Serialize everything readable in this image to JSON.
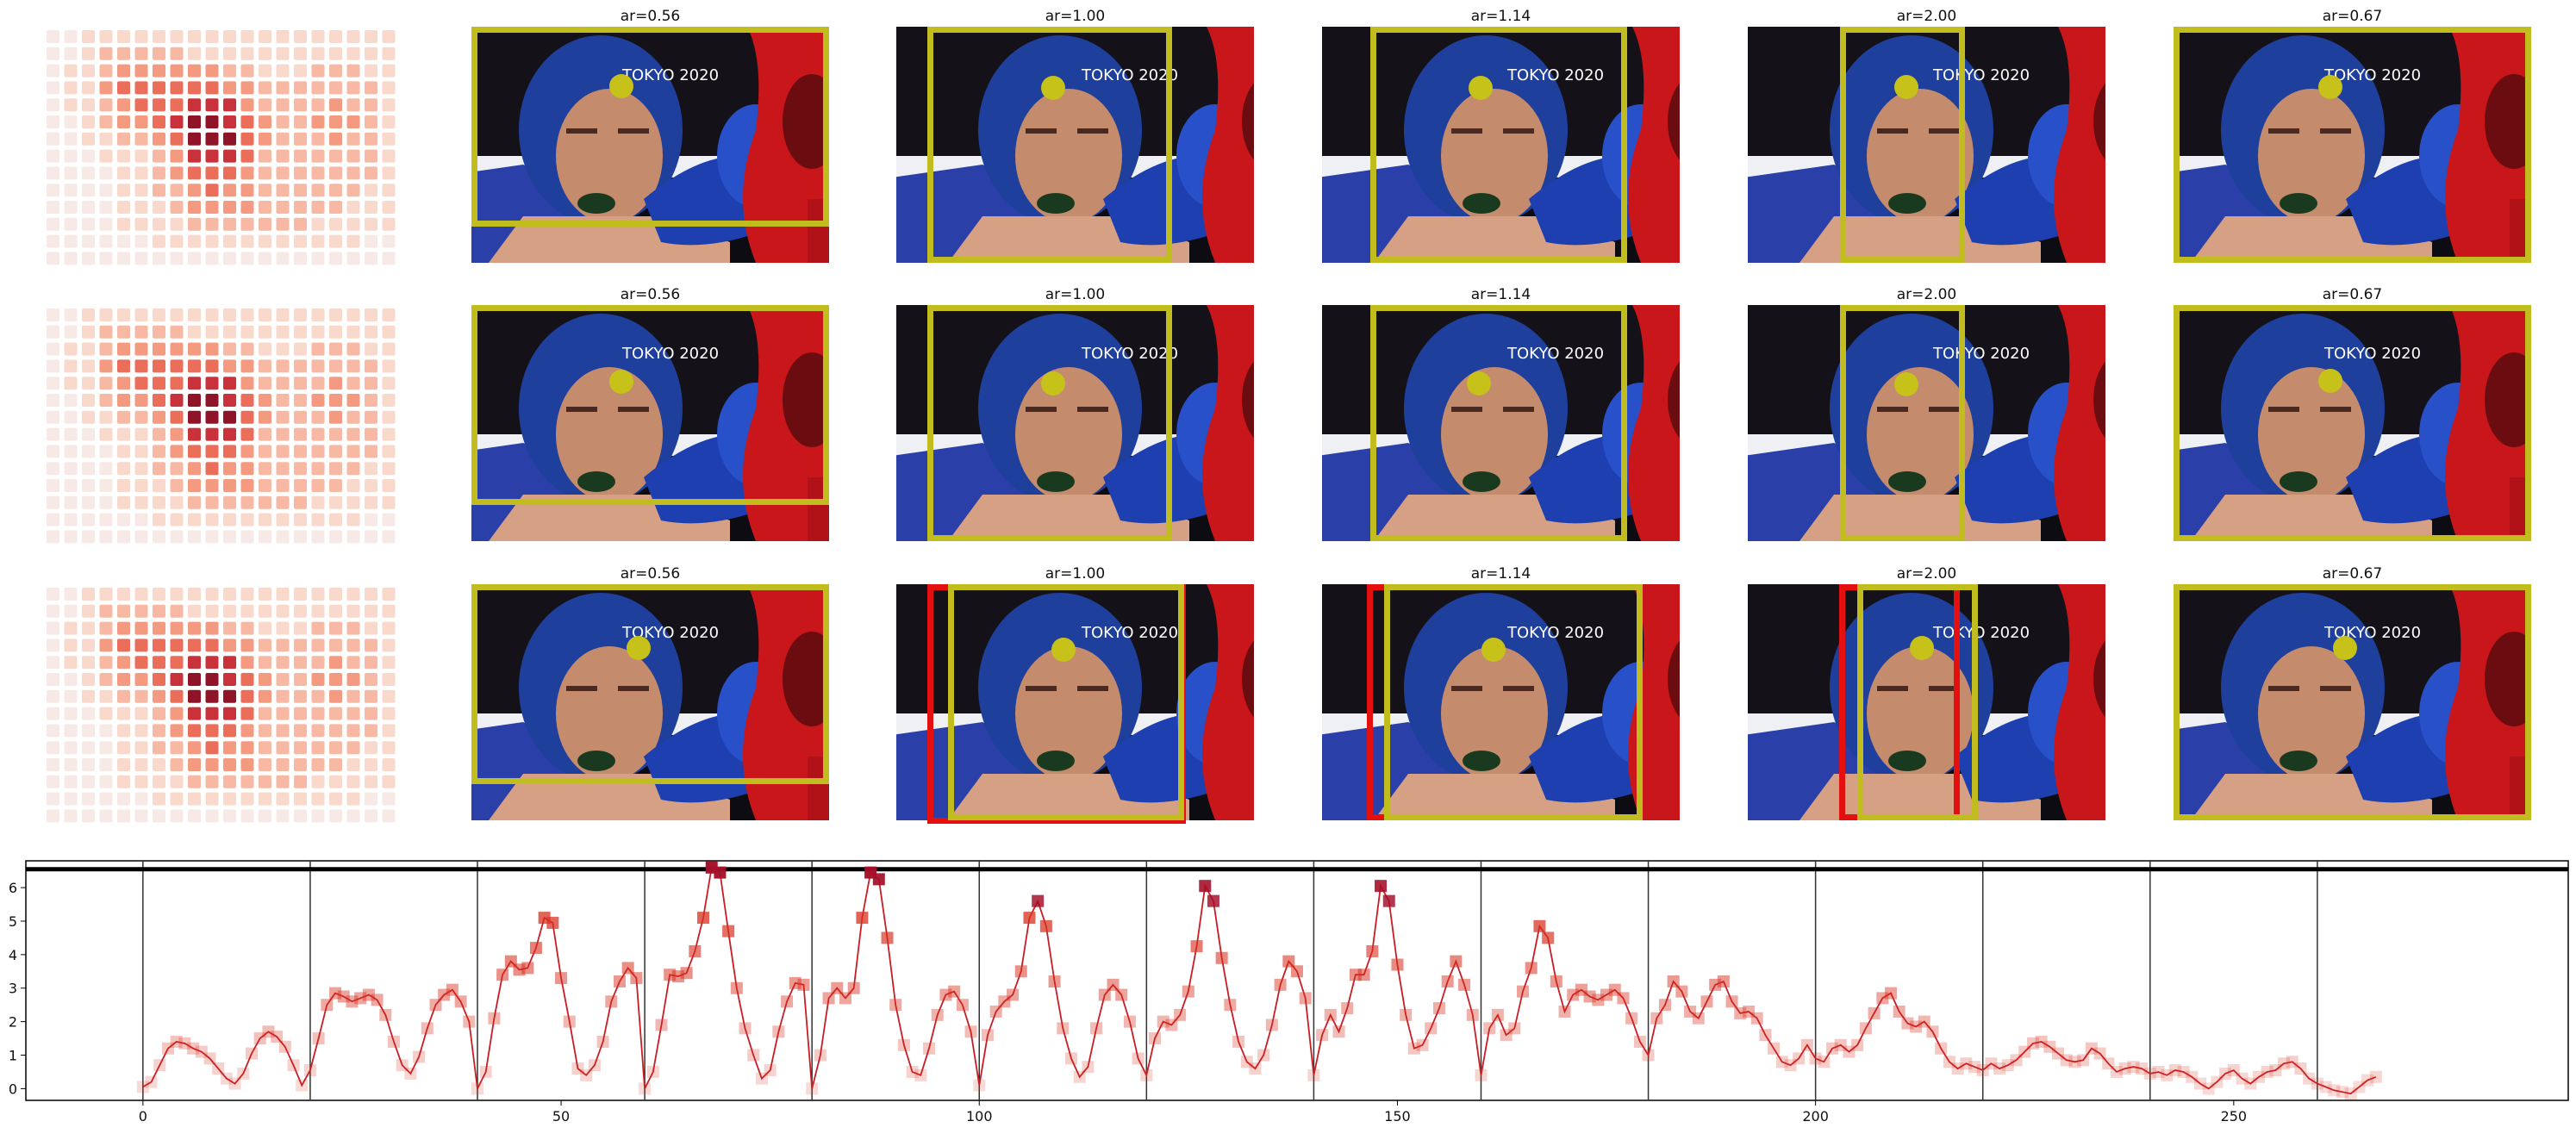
{
  "colors": {
    "box": "#c2bd1e",
    "dot": "#c6c21a",
    "alt_box": "#e41010",
    "line": "#c81d25",
    "marker": "#d7301f"
  },
  "icons": {
    "heatmap": "attention-heatmap",
    "photo": "boxer-photo"
  },
  "rows": [
    {
      "panels": [
        {
          "title": "ar=0.56",
          "red_box": false
        },
        {
          "title": "ar=1.00",
          "red_box": false
        },
        {
          "title": "ar=1.14",
          "red_box": false
        },
        {
          "title": "ar=2.00",
          "red_box": false
        },
        {
          "title": "ar=0.67",
          "red_box": false
        }
      ]
    },
    {
      "panels": [
        {
          "title": "ar=0.56",
          "red_box": false
        },
        {
          "title": "ar=1.00",
          "red_box": false
        },
        {
          "title": "ar=1.14",
          "red_box": false
        },
        {
          "title": "ar=2.00",
          "red_box": false
        },
        {
          "title": "ar=0.67",
          "red_box": false
        }
      ]
    },
    {
      "panels": [
        {
          "title": "ar=0.56",
          "red_box": false
        },
        {
          "title": "ar=1.00",
          "red_box": true
        },
        {
          "title": "ar=1.14",
          "red_box": true
        },
        {
          "title": "ar=2.00",
          "red_box": true
        },
        {
          "title": "ar=0.67",
          "red_box": false
        }
      ]
    }
  ],
  "chart_data": {
    "type": "line",
    "title": "",
    "xlabel": "",
    "ylabel": "",
    "xlim": [
      -14,
      290
    ],
    "ylim": [
      -0.35,
      6.8
    ],
    "xticks": [
      "0",
      "50",
      "100",
      "150",
      "200",
      "250"
    ],
    "yticks": [
      "0",
      "1",
      "2",
      "3",
      "4",
      "5",
      "6"
    ],
    "segment_boundaries": [
      0,
      20,
      40,
      60,
      80,
      100,
      120,
      140,
      160,
      180,
      200,
      220,
      240,
      260
    ],
    "threshold": 6.55,
    "grid": false,
    "values": [
      0.05,
      0.2,
      0.7,
      1.2,
      1.4,
      1.35,
      1.2,
      1.1,
      0.9,
      0.6,
      0.3,
      0.15,
      0.45,
      1.05,
      1.5,
      1.7,
      1.55,
      1.25,
      0.7,
      0.1,
      0.55,
      1.5,
      2.5,
      2.85,
      2.75,
      2.6,
      2.7,
      2.8,
      2.65,
      2.2,
      1.4,
      0.7,
      0.45,
      0.95,
      1.8,
      2.5,
      2.8,
      2.95,
      2.6,
      2.0,
      0.0,
      0.5,
      2.1,
      3.4,
      3.8,
      3.55,
      3.6,
      4.2,
      5.1,
      4.95,
      3.3,
      2.0,
      0.6,
      0.4,
      0.7,
      1.4,
      2.6,
      3.2,
      3.6,
      3.3,
      0.0,
      0.5,
      1.9,
      3.4,
      3.35,
      3.45,
      4.1,
      5.1,
      6.6,
      6.45,
      4.7,
      3.0,
      1.8,
      1.0,
      0.3,
      0.55,
      1.7,
      2.6,
      3.15,
      3.1,
      0.0,
      1.0,
      2.7,
      3.0,
      2.7,
      3.0,
      5.1,
      6.45,
      6.25,
      4.5,
      2.5,
      1.3,
      0.5,
      0.4,
      1.2,
      2.2,
      2.8,
      2.9,
      2.5,
      1.7,
      0.1,
      1.6,
      2.3,
      2.6,
      2.8,
      3.5,
      5.1,
      5.6,
      4.85,
      3.2,
      1.8,
      0.9,
      0.35,
      0.65,
      1.8,
      2.8,
      3.1,
      2.8,
      2.0,
      0.9,
      0.4,
      1.5,
      2.0,
      1.9,
      2.2,
      2.9,
      4.25,
      6.05,
      5.6,
      3.9,
      2.5,
      1.4,
      0.8,
      0.6,
      1.0,
      1.9,
      3.1,
      3.8,
      3.5,
      2.7,
      0.4,
      1.6,
      2.2,
      1.7,
      2.4,
      3.4,
      3.4,
      4.1,
      6.05,
      5.6,
      3.7,
      2.2,
      1.2,
      1.3,
      1.8,
      2.4,
      3.2,
      3.8,
      3.1,
      2.2,
      0.4,
      1.8,
      2.2,
      1.6,
      1.8,
      2.9,
      3.6,
      4.85,
      4.5,
      3.2,
      2.3,
      2.8,
      2.95,
      2.75,
      2.65,
      2.8,
      2.95,
      2.7,
      2.1,
      1.4,
      1.0,
      2.1,
      2.5,
      3.2,
      2.9,
      2.3,
      2.1,
      2.6,
      3.1,
      3.2,
      2.6,
      2.25,
      2.3,
      2.1,
      1.6,
      1.2,
      0.8,
      0.7,
      0.9,
      1.3,
      0.9,
      0.8,
      1.2,
      1.3,
      1.1,
      1.3,
      1.8,
      2.25,
      2.7,
      2.85,
      2.3,
      1.95,
      1.85,
      2.0,
      1.7,
      1.2,
      0.8,
      0.6,
      0.75,
      0.65,
      0.55,
      0.75,
      0.6,
      0.7,
      0.85,
      1.1,
      1.35,
      1.4,
      1.25,
      1.05,
      0.85,
      0.8,
      0.85,
      1.2,
      1.05,
      0.75,
      0.5,
      0.6,
      0.65,
      0.6,
      0.45,
      0.5,
      0.4,
      0.55,
      0.5,
      0.35,
      0.15,
      0.0,
      0.2,
      0.45,
      0.55,
      0.3,
      0.15,
      0.35,
      0.5,
      0.55,
      0.75,
      0.8,
      0.6,
      0.3,
      0.15,
      0.05,
      -0.05,
      -0.1,
      -0.15,
      0.05,
      0.25,
      0.35
    ]
  }
}
